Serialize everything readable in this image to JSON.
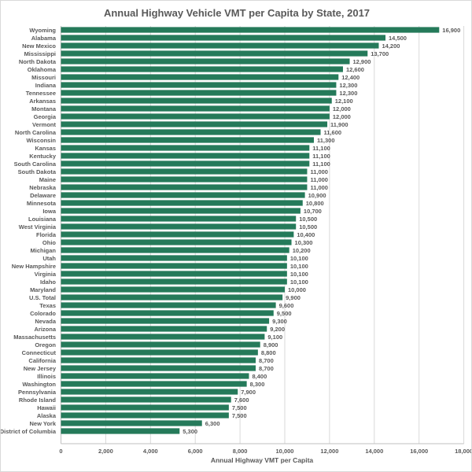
{
  "chart_data": {
    "type": "bar",
    "orientation": "horizontal",
    "title": "Annual Highway Vehicle VMT per Capita by State, 2017",
    "xlabel": "Annual Highway  VMT per Capita",
    "ylabel": "",
    "xlim": [
      0,
      18000
    ],
    "xticks": [
      "0",
      "2,000",
      "4,000",
      "6,000",
      "8,000",
      "10,000",
      "12,000",
      "14,000",
      "16,000",
      "18,000"
    ],
    "grid": "vertical",
    "bar_color": "#257a5a",
    "categories": [
      "Wyoming",
      "Alabama",
      "New Mexico",
      "Mississippi",
      "North Dakota",
      "Oklahoma",
      "Missouri",
      "Indiana",
      "Tennessee",
      "Arkansas",
      "Montana",
      "Georgia",
      "Vermont",
      "North Carolina",
      "Wisconsin",
      "Kansas",
      "Kentucky",
      "South Carolina",
      "South Dakota",
      "Maine",
      "Nebraska",
      "Delaware",
      "Minnesota",
      "Iowa",
      "Louisiana",
      "West Virginia",
      "Florida",
      "Ohio",
      "Michigan",
      "Utah",
      "New Hampshire",
      "Virginia",
      "Idaho",
      "Maryland",
      "U.S. Total",
      "Texas",
      "Colorado",
      "Nevada",
      "Arizona",
      "Massachusetts",
      "Oregon",
      "Connecticut",
      "California",
      "New Jersey",
      "Illinois",
      "Washington",
      "Pennsylvania",
      "Rhode Island",
      "Hawaii",
      "Alaska",
      "New York",
      "District of Columbia"
    ],
    "values": [
      16900,
      14500,
      14200,
      13700,
      12900,
      12600,
      12400,
      12300,
      12300,
      12100,
      12000,
      12000,
      11900,
      11600,
      11300,
      11100,
      11100,
      11100,
      11000,
      11000,
      11000,
      10900,
      10800,
      10700,
      10500,
      10500,
      10400,
      10300,
      10200,
      10100,
      10100,
      10100,
      10100,
      10000,
      9900,
      9600,
      9500,
      9300,
      9200,
      9100,
      8900,
      8800,
      8700,
      8700,
      8400,
      8300,
      7900,
      7600,
      7500,
      7500,
      6300,
      5300
    ],
    "data_labels": [
      "16,900",
      "14,500",
      "14,200",
      "13,700",
      "12,900",
      "12,600",
      "12,400",
      "12,300",
      "12,300",
      "12,100",
      "12,000",
      "12,000",
      "11,900",
      "11,600",
      "11,300",
      "11,100",
      "11,100",
      "11,100",
      "11,000",
      "11,000",
      "11,000",
      "10,900",
      "10,800",
      "10,700",
      "10,500",
      "10,500",
      "10,400",
      "10,300",
      "10,200",
      "10,100",
      "10,100",
      "10,100",
      "10,100",
      "10,000",
      "9,900",
      "9,600",
      "9,500",
      "9,300",
      "9,200",
      "9,100",
      "8,900",
      "8,800",
      "8,700",
      "8,700",
      "8,400",
      "8,300",
      "7,900",
      "7,600",
      "7,500",
      "7,500",
      "6,300",
      "5,300"
    ]
  }
}
